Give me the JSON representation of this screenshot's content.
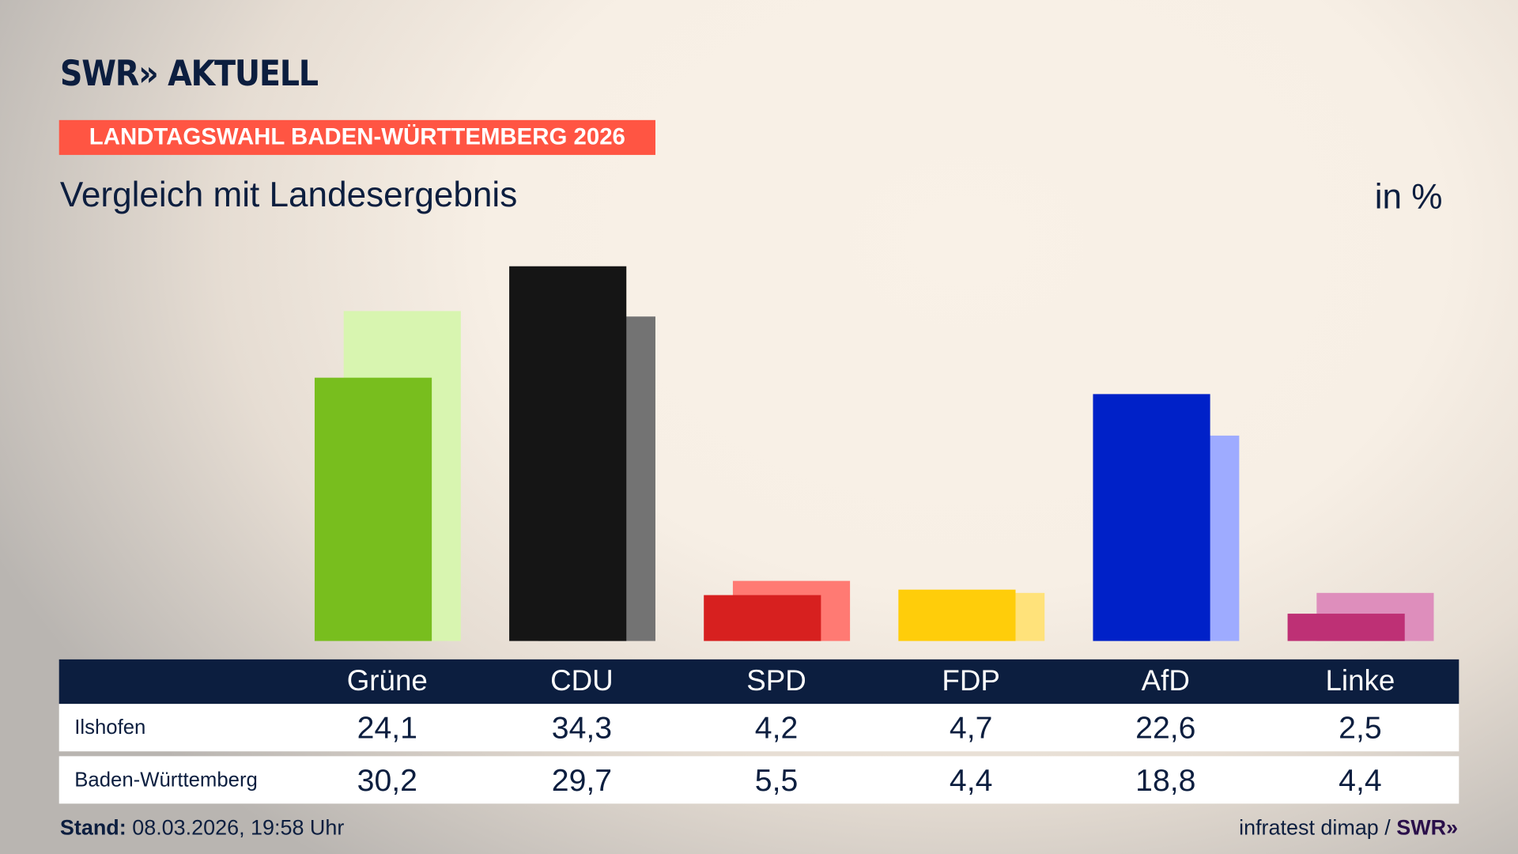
{
  "brand": {
    "logo": "SWR» AKTUELL",
    "footer_logo": "SWR»"
  },
  "banner": "LANDTAGSWAHL BADEN-WÜRTTEMBERG 2026",
  "subtitle": "Vergleich mit Landesergebnis",
  "unit": "in %",
  "footer": {
    "stand_label": "Stand:",
    "stand_value": "08.03.2026, 19:58 Uhr",
    "source": "infratest dimap /"
  },
  "chart_data": {
    "type": "bar",
    "categories": [
      "Grüne",
      "CDU",
      "SPD",
      "FDP",
      "AfD",
      "Linke"
    ],
    "series": [
      {
        "name": "Ilshofen",
        "values": [
          24.1,
          34.3,
          4.2,
          4.7,
          22.6,
          2.5
        ],
        "labels": [
          "24,1",
          "34,3",
          "4,2",
          "4,7",
          "22,6",
          "2,5"
        ],
        "colors": [
          "#78be1e",
          "#151515",
          "#d7201f",
          "#ffcd0a",
          "#0021c8",
          "#be3075"
        ]
      },
      {
        "name": "Baden-Württemberg",
        "values": [
          30.2,
          29.7,
          5.5,
          4.4,
          18.8,
          4.4
        ],
        "labels": [
          "30,2",
          "29,7",
          "5,5",
          "4,4",
          "18,8",
          "4,4"
        ],
        "colors": [
          "#d8f5b0",
          "#737373",
          "#ff7a73",
          "#ffe27a",
          "#9eabff",
          "#de8ebc"
        ]
      }
    ],
    "ylim": [
      0,
      35
    ]
  }
}
